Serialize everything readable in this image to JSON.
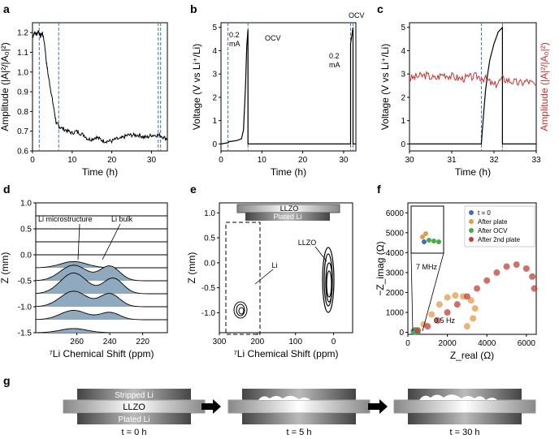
{
  "panels": {
    "a": {
      "letter": "a"
    },
    "b": {
      "letter": "b",
      "annotations": [
        "0.2\nmA",
        "OCV",
        "0.2\nmA",
        "OCV"
      ]
    },
    "c": {
      "letter": "c"
    },
    "d": {
      "letter": "d",
      "annotations": [
        "Li microstructure",
        "Li bulk"
      ]
    },
    "e": {
      "letter": "e",
      "annotations": [
        "LLZO",
        "Plated Li",
        "LLZO",
        "Li"
      ]
    },
    "f": {
      "letter": "f",
      "annotations": [
        "7 MHz",
        "0.5 Hz"
      ]
    },
    "g": {
      "letter": "g",
      "labels": {
        "stripped": "Stripped Li",
        "llzo": "LLZO",
        "plated": "Plated Li",
        "t0": "t = 0 h",
        "t5": "t = 5 h",
        "t30": "t = 30 h"
      }
    }
  },
  "chart_data": [
    {
      "id": "a",
      "type": "line",
      "xlabel": "Time (h)",
      "ylabel": "Amplitude (|A|²/|A₀|²)",
      "xlim": [
        0,
        34
      ],
      "ylim": [
        0.6,
        1.25
      ],
      "xticks": [
        0,
        10,
        20,
        30
      ],
      "yticks": [
        0.6,
        0.7,
        0.8,
        0.9,
        1.0,
        1.1,
        1.2
      ],
      "vlines": [
        1.7,
        6.6,
        31.7,
        32.3
      ],
      "series": [
        {
          "x": [
            0,
            0.5,
            1,
            1.5,
            2,
            2.5,
            3,
            3.5,
            4,
            4.5,
            5,
            5.5,
            6,
            6.5,
            7,
            8,
            9,
            10,
            11,
            12,
            13,
            14,
            15,
            16,
            17,
            18,
            19,
            20,
            21,
            22,
            23,
            24,
            25,
            26,
            27,
            28,
            29,
            30,
            31,
            32,
            33,
            34
          ],
          "y": [
            1.18,
            1.2,
            1.19,
            1.21,
            1.18,
            1.2,
            1.15,
            1.05,
            0.98,
            0.92,
            0.86,
            0.8,
            0.74,
            0.73,
            0.72,
            0.71,
            0.7,
            0.69,
            0.7,
            0.69,
            0.68,
            0.66,
            0.66,
            0.67,
            0.66,
            0.65,
            0.65,
            0.65,
            0.66,
            0.66,
            0.67,
            0.68,
            0.68,
            0.68,
            0.68,
            0.67,
            0.67,
            0.68,
            0.68,
            0.68,
            0.67,
            0.66
          ]
        }
      ]
    },
    {
      "id": "b",
      "type": "line",
      "xlabel": "Time (h)",
      "ylabel": "Voltage (V vs Li⁺/Li)",
      "xlim": [
        0,
        33
      ],
      "ylim": [
        -0.3,
        5.2
      ],
      "xticks": [
        0,
        10,
        20,
        30
      ],
      "yticks": [
        0,
        1,
        2,
        3,
        4,
        5
      ],
      "vlines": [
        1.7,
        6.6,
        31.7,
        32.3
      ],
      "series": [
        {
          "x": [
            0,
            1.7,
            2,
            3,
            4,
            5,
            5.5,
            6,
            6.3,
            6.6,
            6.6,
            31.7,
            31.7,
            32.3,
            32.3,
            33
          ],
          "y": [
            0,
            0.05,
            0.1,
            0.12,
            0.15,
            0.22,
            0.6,
            2.5,
            4.2,
            4.9,
            0,
            0,
            4.3,
            5.0,
            0,
            0
          ]
        }
      ]
    },
    {
      "id": "c",
      "type": "line",
      "xlabel": "Time (h)",
      "ylabel": "Voltage (V vs Li⁺/Li)",
      "ylabel2": "Amplitude (|A|²/|A₀|²)",
      "xlim": [
        30,
        33
      ],
      "ylim": [
        -0.3,
        5.2
      ],
      "xticks": [
        30,
        31,
        32,
        33
      ],
      "yticks": [
        0,
        1,
        2,
        3,
        4,
        5
      ],
      "vlines": [
        31.7,
        32.2
      ],
      "series": [
        {
          "name": "voltage",
          "x": [
            30,
            31.7,
            31.75,
            31.8,
            31.85,
            31.9,
            32.0,
            32.1,
            32.2,
            32.2,
            33
          ],
          "y": [
            0,
            0,
            1.2,
            2.3,
            3.0,
            3.6,
            4.3,
            4.8,
            5.0,
            0,
            0
          ]
        },
        {
          "name": "amplitude",
          "x": [
            30,
            30.2,
            30.4,
            30.6,
            30.8,
            31.0,
            31.2,
            31.4,
            31.6,
            31.8,
            32.0,
            32.2,
            32.4,
            32.6,
            32.8,
            33.0
          ],
          "y": [
            2.8,
            2.9,
            2.95,
            2.8,
            3.0,
            2.9,
            2.8,
            2.85,
            2.9,
            2.8,
            2.5,
            2.8,
            2.7,
            2.6,
            2.7,
            2.5
          ]
        }
      ]
    },
    {
      "id": "d",
      "type": "area",
      "xlabel": "⁷Li Chemical Shift (ppm)",
      "ylabel": "Z (mm)",
      "xlim": [
        285,
        205
      ],
      "ylim": [
        -1.5,
        1.0
      ],
      "xticks": [
        260,
        240,
        220
      ],
      "yticks": [
        -1.5,
        -1.0,
        -0.5,
        0.0,
        0.5,
        1.0
      ],
      "offsets": [
        1.0,
        0.75,
        0.5,
        0.25,
        0.0,
        -0.25,
        -0.5,
        -0.75,
        -1.0,
        -1.25,
        -1.5
      ],
      "peak_sets": [
        [],
        [],
        [],
        [],
        [],
        [
          [
            262,
            0.12,
            8
          ]
        ],
        [
          [
            262,
            0.3,
            8
          ],
          [
            240,
            0.28,
            6
          ]
        ],
        [
          [
            262,
            0.4,
            8
          ],
          [
            238,
            0.3,
            6
          ]
        ],
        [
          [
            262,
            0.3,
            8
          ],
          [
            240,
            0.25,
            6
          ]
        ],
        [
          [
            262,
            0.18,
            8
          ],
          [
            240,
            0.14,
            6
          ]
        ],
        [
          [
            262,
            0.08,
            8
          ]
        ]
      ]
    },
    {
      "id": "e",
      "type": "contour",
      "xlabel": "⁷Li Chemical Shift (ppm)",
      "ylabel": "Z (mm)",
      "xlim": [
        300,
        -50
      ],
      "ylim": [
        -1.4,
        1.2
      ],
      "xticks": [
        300,
        200,
        100,
        0
      ],
      "yticks": [
        -1.0,
        -0.5,
        0.0,
        0.5,
        1.0
      ]
    },
    {
      "id": "f",
      "type": "scatter",
      "xlabel": "Z_real (Ω)",
      "ylabel": "−Z_imag (Ω)",
      "xlim": [
        0,
        6500
      ],
      "ylim": [
        -100,
        6500
      ],
      "xticks": [
        0,
        2000,
        4000,
        6000
      ],
      "yticks": [
        0,
        1000,
        2000,
        3000,
        4000,
        5000,
        6000
      ],
      "legend": "top-right",
      "series": [
        {
          "name": "t = 0",
          "color": "#3a6fb5",
          "x": [
            300,
            360,
            420,
            480
          ],
          "y": [
            50,
            100,
            40,
            20
          ]
        },
        {
          "name": "After plate",
          "color": "#e39a4a",
          "x": [
            400,
            800,
            1200,
            1600,
            2000,
            2400,
            2800,
            3200,
            3400,
            3300,
            3000
          ],
          "y": [
            50,
            400,
            900,
            1400,
            1750,
            1850,
            1800,
            1600,
            1200,
            700,
            300
          ]
        },
        {
          "name": "After OCV",
          "color": "#4aaa4a",
          "x": [
            350,
            400,
            450
          ],
          "y": [
            30,
            50,
            30
          ]
        },
        {
          "name": "After 2nd plate",
          "color": "#c0403a",
          "x": [
            500,
            1000,
            1500,
            2000,
            2500,
            3000,
            3500,
            4000,
            4500,
            5000,
            5500,
            6000,
            6300,
            6400
          ],
          "y": [
            100,
            300,
            600,
            1000,
            1400,
            1800,
            2200,
            2600,
            3000,
            3300,
            3400,
            3200,
            2800,
            2200
          ]
        }
      ]
    }
  ]
}
